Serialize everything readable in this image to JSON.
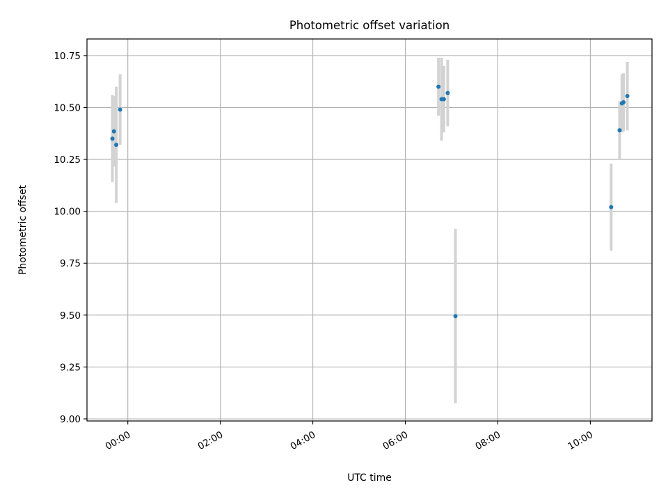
{
  "chart_data": {
    "type": "scatter",
    "title": "Photometric offset variation",
    "xlabel": "UTC time",
    "ylabel": "Photometric offset",
    "xlim": [
      "2024-01-01T23:07",
      "2024-01-02T11:20"
    ],
    "ylim": [
      8.99,
      10.83
    ],
    "x_ticks": [
      "2024-01-02T00:00",
      "2024-01-02T02:00",
      "2024-01-02T04:00",
      "2024-01-02T06:00",
      "2024-01-02T08:00",
      "2024-01-02T10:00"
    ],
    "x_tick_labels": [
      "00:00",
      "02:00",
      "04:00",
      "06:00",
      "08:00",
      "10:00"
    ],
    "y_ticks": [
      9.0,
      9.25,
      9.5,
      9.75,
      10.0,
      10.25,
      10.5,
      10.75
    ],
    "y_tick_labels": [
      "9.00",
      "9.25",
      "9.50",
      "9.75",
      "10.00",
      "10.25",
      "10.50",
      "10.75"
    ],
    "grid": true,
    "series": [
      {
        "color": "#1f77b4",
        "error_bar_color": "#d3d3d3",
        "x": [
          "2024-01-01T23:40",
          "2024-01-01T23:42",
          "2024-01-01T23:45",
          "2024-01-01T23:50",
          "2024-01-02T06:43",
          "2024-01-02T06:47",
          "2024-01-02T06:50",
          "2024-01-02T06:55",
          "2024-01-02T07:05",
          "2024-01-02T10:27",
          "2024-01-02T10:38",
          "2024-01-02T10:41",
          "2024-01-02T10:43",
          "2024-01-02T10:48"
        ],
        "y": [
          10.35,
          10.385,
          10.32,
          10.49,
          10.6,
          10.54,
          10.54,
          10.57,
          9.495,
          10.02,
          10.39,
          10.52,
          10.525,
          10.555
        ],
        "error": [
          0.21,
          0.17,
          0.28,
          0.17,
          0.14,
          0.2,
          0.16,
          0.16,
          0.42,
          0.21,
          0.14,
          0.14,
          0.14,
          0.165
        ]
      }
    ]
  }
}
